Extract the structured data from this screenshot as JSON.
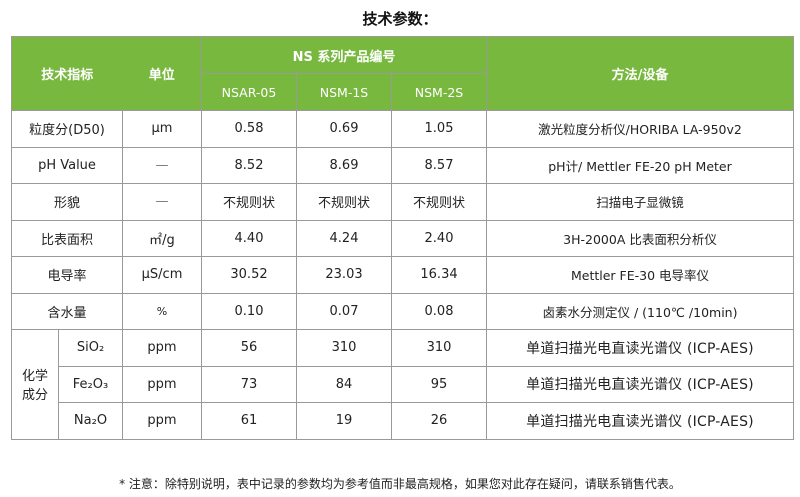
{
  "page_title": "技术参数：",
  "header": {
    "col_index": "技术指标",
    "col_unit": "单位",
    "series_group": "NS 系列产品编号",
    "products": [
      "NSAR-05",
      "NSM-1S",
      "NSM-2S"
    ],
    "col_method": "方法/设备"
  },
  "rows": [
    {
      "name": "粒度分(D50)",
      "unit": "μm",
      "v1": "0.58",
      "v2": "0.69",
      "v3": "1.05",
      "method": "激光粒度分析仪/HORIBA LA-950v2"
    },
    {
      "name": "pH Value",
      "unit": "—",
      "v1": "8.52",
      "v2": "8.69",
      "v3": "8.57",
      "method": "pH计/ Mettler FE-20 pH Meter"
    },
    {
      "name": "形貌",
      "unit": "—",
      "v1": "不规则状",
      "v2": "不规则状",
      "v3": "不规则状",
      "method": "扫描电子显微镜"
    },
    {
      "name": "比表面积",
      "unit": "㎡/g",
      "v1": "4.40",
      "v2": "4.24",
      "v3": "2.40",
      "method": "3H-2000A 比表面积分析仪"
    },
    {
      "name": "电导率",
      "unit": "μS/cm",
      "v1": "30.52",
      "v2": "23.03",
      "v3": "16.34",
      "method": "Mettler FE-30 电导率仪"
    },
    {
      "name": "含水量",
      "unit": "%",
      "v1": "0.10",
      "v2": "0.07",
      "v3": "0.08",
      "method": "卤素水分测定仪 / (110℃ /10min)"
    }
  ],
  "chem": {
    "group_lines": [
      "化学",
      "成分"
    ],
    "rows": [
      {
        "name": "SiO₂",
        "unit": "ppm",
        "v1": "56",
        "v2": "310",
        "v3": "310",
        "method": "单道扫描光电直读光谱仪 (ICP-AES)"
      },
      {
        "name": "Fe₂O₃",
        "unit": "ppm",
        "v1": "73",
        "v2": "84",
        "v3": "95",
        "method": "单道扫描光电直读光谱仪 (ICP-AES)"
      },
      {
        "name": "Na₂O",
        "unit": "ppm",
        "v1": "61",
        "v2": "19",
        "v3": "26",
        "method": "单道扫描光电直读光谱仪 (ICP-AES)"
      }
    ]
  },
  "footnote": "* 注意：除特别说明，表中记录的参数均为参考值而非最高规格，如果您对此存在疑问，请联系销售代表。",
  "colors": {
    "header_bg": "#79b83f",
    "header_text": "#ffffff",
    "border": "#9a9a9a"
  }
}
